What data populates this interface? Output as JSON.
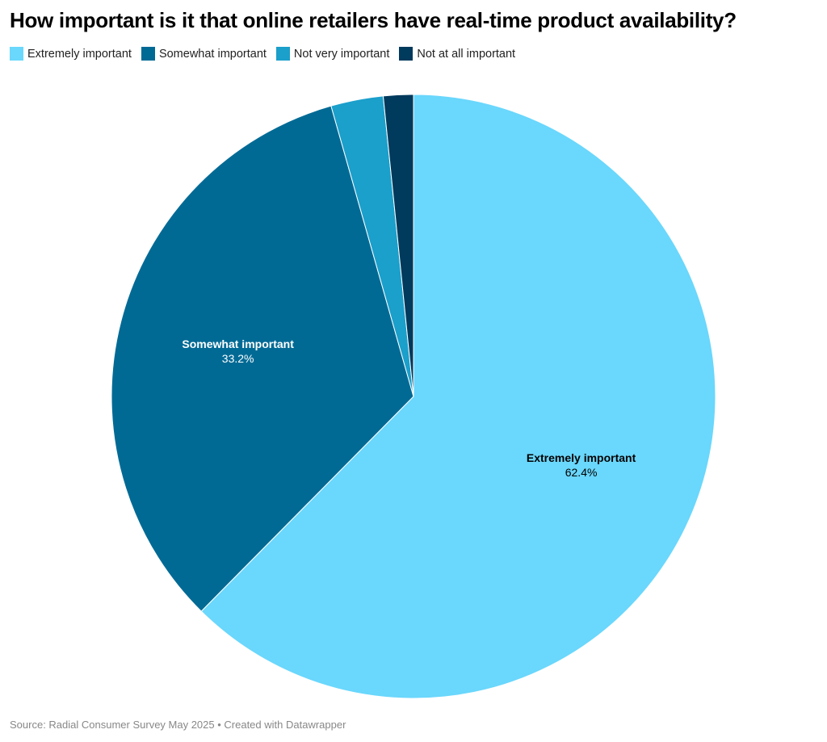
{
  "title": "How important is it that online retailers have real-time product availability?",
  "source_note": "Source: Radial Consumer Survey May 2025 • Created with Datawrapper",
  "chart_data": {
    "type": "pie",
    "title": "How important is it that online retailers have real-time product availability?",
    "legend_position": "top-left",
    "categories": [
      "Extremely important",
      "Somewhat important",
      "Not very important",
      "Not at all important"
    ],
    "values": [
      62.4,
      33.2,
      2.8,
      1.6
    ],
    "value_labels": [
      "62.4%",
      "33.2%",
      "",
      ""
    ],
    "colors": [
      "#6ad7fc",
      "#006a95",
      "#1b9fcb",
      "#003a5c"
    ],
    "label_colors": [
      "#000000",
      "#ffffff",
      "#ffffff",
      "#ffffff"
    ]
  }
}
